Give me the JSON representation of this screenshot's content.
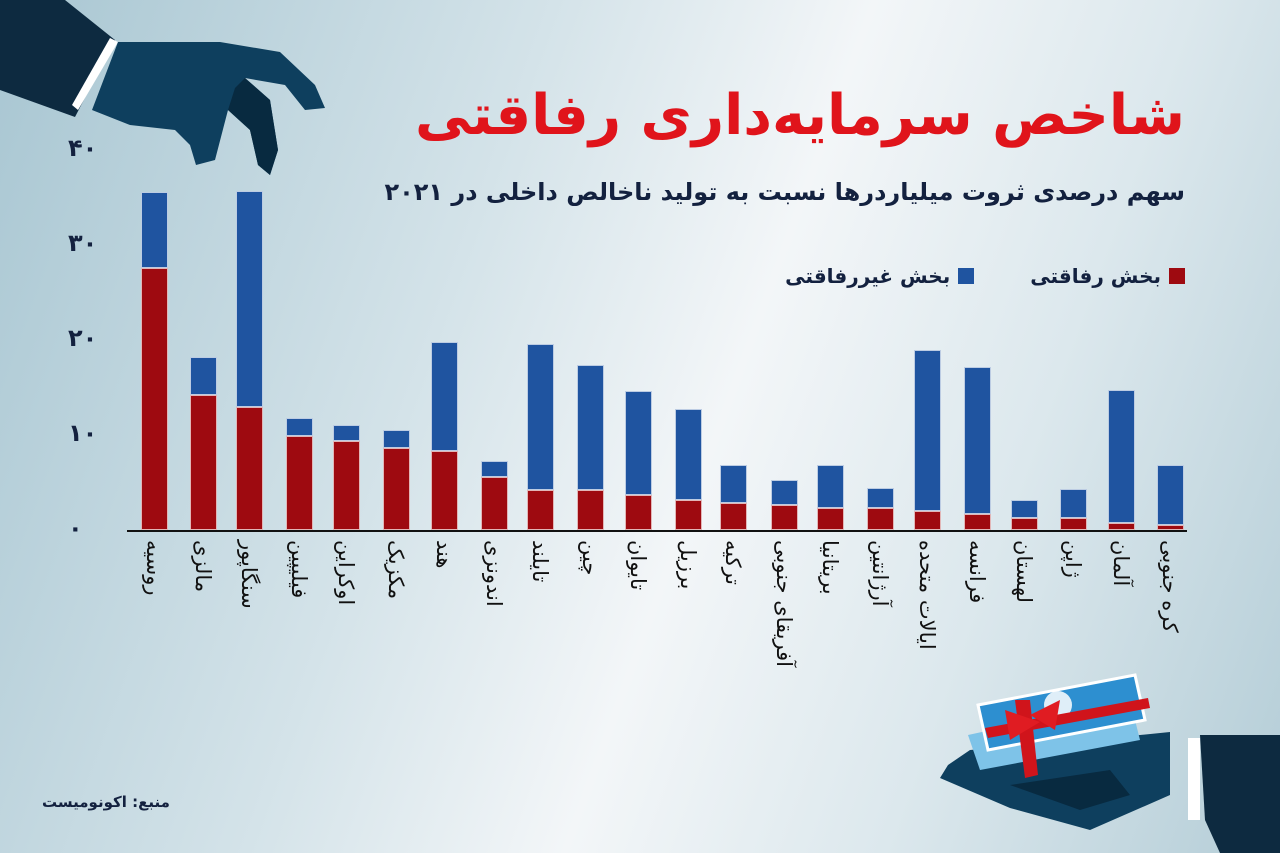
{
  "header": {
    "title": "شاخص سرمایه‌داری رفاقتی",
    "subtitle": "سهم درصدی ثروت میلیاردرها نسبت به تولید ناخالص داخلی در ۲۰۲۱"
  },
  "legend": [
    {
      "label": "بخش رفاقتی",
      "color": "#9e0a10"
    },
    {
      "label": "بخش غیررفاقتی",
      "color": "#1f54a0"
    }
  ],
  "y_ticks": [
    "۰",
    "۱۰",
    "۲۰",
    "۳۰",
    "۴۰"
  ],
  "source": "منبع: اکونومیست",
  "colors": {
    "crony": "#9e0a10",
    "non_crony": "#1f54a0",
    "title": "#e0141b",
    "text": "#13213f"
  },
  "chart_data": {
    "type": "bar",
    "stacked": true,
    "title": "شاخص سرمایه‌داری رفاقتی",
    "subtitle": "سهم درصدی ثروت میلیاردرها نسبت به تولید ناخالص داخلی در ۲۰۲۱",
    "xlabel": "",
    "ylabel": "",
    "ylim": [
      0,
      40
    ],
    "yticks": [
      0,
      10,
      20,
      30,
      40
    ],
    "legend_position": "top-right",
    "grid": false,
    "categories": [
      "روسیه",
      "مالزی",
      "سنگاپور",
      "فیلیپین",
      "اوکراین",
      "مکزیک",
      "هند",
      "اندونزی",
      "تایلند",
      "چین",
      "تایوان",
      "برزیل",
      "ترکیه",
      "آفریقای جنوبی",
      "بریتانیا",
      "آرژانتین",
      "ایالات متحده",
      "فرانسه",
      "لهستان",
      "ژاپن",
      "آلمان",
      "کره جنوبی"
    ],
    "series": [
      {
        "name": "بخش رفاقتی",
        "color": "#9e0a10",
        "values": [
          27.4,
          14.1,
          12.9,
          9.8,
          9.3,
          8.6,
          8.3,
          5.5,
          4.2,
          4.2,
          3.7,
          3.1,
          2.8,
          2.6,
          2.3,
          2.3,
          2.0,
          1.7,
          1.3,
          1.3,
          0.7,
          0.5
        ]
      },
      {
        "name": "بخش غیررفاقتی",
        "color": "#1f54a0",
        "values": [
          8.0,
          4.0,
          22.6,
          1.9,
          1.7,
          1.9,
          11.4,
          1.7,
          15.3,
          13.1,
          10.9,
          9.6,
          4.0,
          2.6,
          4.5,
          2.1,
          16.8,
          15.4,
          1.8,
          3.0,
          14.0,
          6.3
        ]
      }
    ],
    "totals": [
      35.4,
      18.1,
      35.5,
      11.7,
      11.0,
      10.5,
      19.7,
      7.2,
      19.5,
      17.3,
      14.6,
      12.7,
      6.8,
      5.2,
      6.8,
      4.4,
      18.8,
      17.1,
      3.1,
      4.3,
      14.7,
      6.8
    ],
    "source": "منبع: اکونومیست"
  }
}
